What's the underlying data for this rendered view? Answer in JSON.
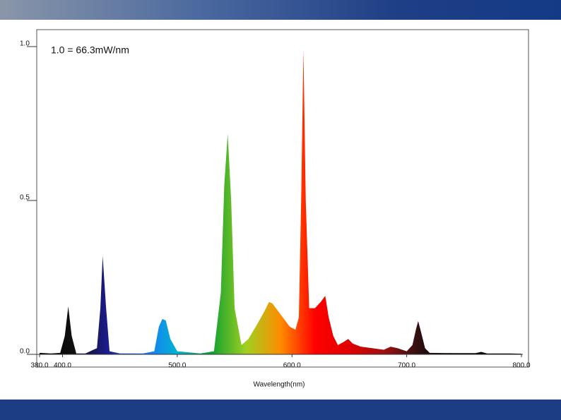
{
  "chart_data": {
    "type": "area",
    "annotation": "1.0 = 66.3mW/nm",
    "x_label": "Wavelength(nm)",
    "xlim": [
      380,
      800
    ],
    "ylim": [
      0,
      1
    ],
    "xticks": [
      {
        "value": 380,
        "label": "380.0"
      },
      {
        "value": 400,
        "label": "400.0"
      },
      {
        "value": 500,
        "label": "500.0"
      },
      {
        "value": 600,
        "label": "600.0"
      },
      {
        "value": 700,
        "label": "700.0"
      },
      {
        "value": 800,
        "label": "800.0"
      }
    ],
    "yticks": [
      {
        "value": 0,
        "label": "0.0"
      },
      {
        "value": 0.5,
        "label": "0.5"
      },
      {
        "value": 1,
        "label": "1.0"
      }
    ],
    "grid": false,
    "colors": [
      "#000000",
      "#111111",
      "#1c1c90",
      "#1f6fff",
      "#00b4d0",
      "#10a030",
      "#a0d020",
      "#ff8c00",
      "#ff0000",
      "#e00000",
      "#a01010",
      "#301010",
      "#000000",
      "#000000",
      "#000000"
    ],
    "x": [
      380,
      390,
      398,
      402,
      405,
      408,
      412,
      420,
      430,
      433,
      435,
      438,
      441,
      450,
      470,
      480,
      484,
      487,
      490,
      494,
      500,
      520,
      532,
      538,
      541,
      544,
      547,
      550,
      556,
      562,
      570,
      576,
      580,
      583,
      586,
      592,
      598,
      603,
      606,
      608,
      610,
      612,
      615,
      620,
      625,
      629,
      632,
      636,
      640,
      645,
      649,
      653,
      660,
      670,
      680,
      686,
      692,
      700,
      705,
      708,
      710,
      712,
      716,
      720,
      740,
      760,
      765,
      770,
      790,
      800
    ],
    "values": [
      0.005,
      0.003,
      0.005,
      0.06,
      0.156,
      0.06,
      0.003,
      0.003,
      0.02,
      0.15,
      0.32,
      0.15,
      0.01,
      0.003,
      0.003,
      0.01,
      0.09,
      0.115,
      0.11,
      0.05,
      0.01,
      0.003,
      0.01,
      0.2,
      0.55,
      0.716,
      0.5,
      0.15,
      0.03,
      0.05,
      0.1,
      0.14,
      0.17,
      0.165,
      0.15,
      0.12,
      0.09,
      0.08,
      0.12,
      0.5,
      0.99,
      0.5,
      0.15,
      0.15,
      0.17,
      0.19,
      0.12,
      0.06,
      0.03,
      0.04,
      0.05,
      0.035,
      0.025,
      0.02,
      0.015,
      0.025,
      0.02,
      0.01,
      0.03,
      0.08,
      0.108,
      0.08,
      0.02,
      0.005,
      0.004,
      0.004,
      0.008,
      0.003,
      0.003,
      0.002
    ]
  }
}
